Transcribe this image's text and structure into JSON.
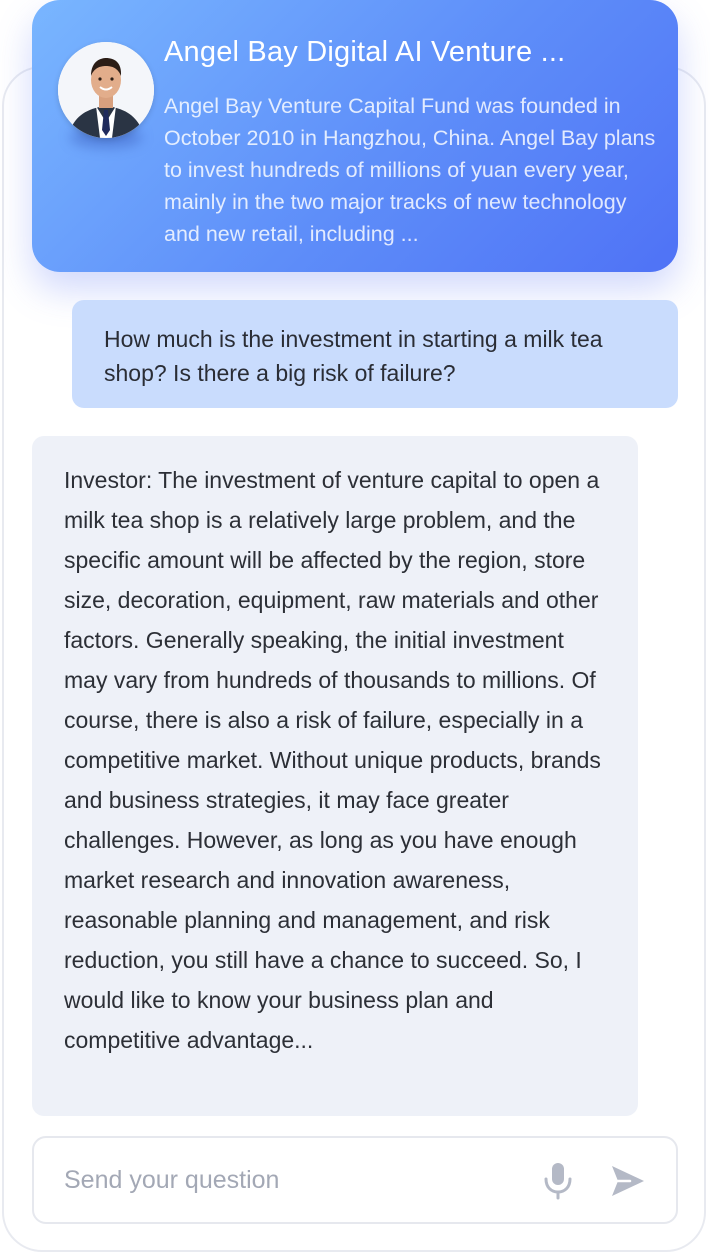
{
  "header": {
    "title": "Angel Bay Digital AI Venture ...",
    "description": "Angel Bay Venture Capital Fund was founded in  October 2010 in Hangzhou, China. Angel Bay plans to invest hundreds of millions of yuan every year, mainly in the two major tracks of new technology and new retail, including ...",
    "avatar_icon": "businessman-avatar"
  },
  "messages": {
    "user": "How much is the investment in starting a milk tea shop? Is there a big risk of failure?",
    "bot": "Investor: The investment of venture capital to open a milk tea shop is a relatively large problem, and the specific amount will be affected by the region, store size, decoration, equipment, raw materials and other factors. Generally speaking, the initial investment may vary from hundreds of thousands to millions. Of course, there is also a risk of failure, especially in  a competitive market. Without unique products,  brands and business strategies, it may face greater challenges. However, as long as you have enough market research and innovation awareness, reasonable planning and management, and risk reduction, you still have a  chance to succeed. So, I would like to know your business plan and competitive advantage..."
  },
  "input": {
    "placeholder": "Send your question",
    "value": "",
    "mic_icon": "microphone-icon",
    "send_icon": "send-icon"
  },
  "colors": {
    "header_gradient_start": "#79b6ff",
    "header_gradient_end": "#4f72f6",
    "user_bubble": "#c9dcfd",
    "bot_bubble": "#eef1f8",
    "icon_gray": "#b4b9c6"
  }
}
